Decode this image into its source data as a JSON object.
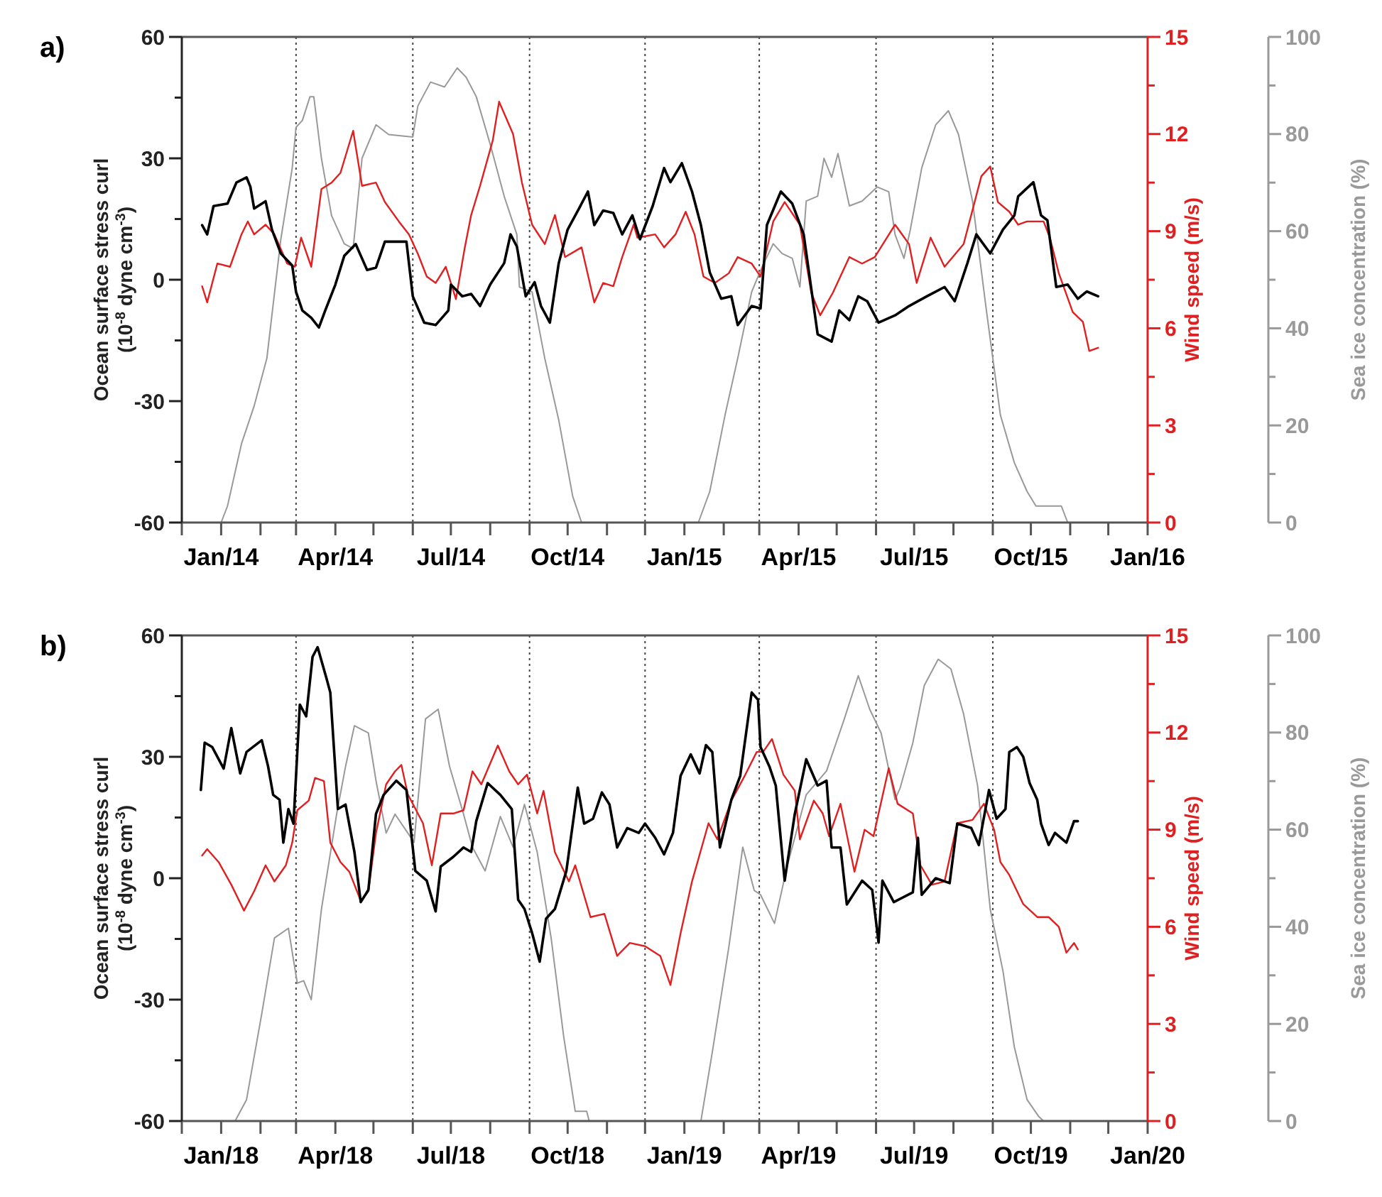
{
  "chart_data": [
    {
      "type": "line",
      "title": "a)",
      "ylabel": "Ocean surface stress curl\n(10$^{-8}$ dyne cm$^{-3}$)",
      "y2label": "Wind speed (m/s)",
      "y3label": "Sea ice concentration (%)",
      "xlim": [
        "2013-12-01",
        "2016-01-01"
      ],
      "xticks": [
        {
          "value": "2013-12-01",
          "label": null
        },
        {
          "value": "2014-01-01",
          "label": "Jan/14"
        },
        {
          "value": "2014-02-01",
          "label": null
        },
        {
          "value": "2014-03-01",
          "label": null
        },
        {
          "value": "2014-04-01",
          "label": "Apr/14"
        },
        {
          "value": "2014-05-01",
          "label": null
        },
        {
          "value": "2014-06-01",
          "label": null
        },
        {
          "value": "2014-07-01",
          "label": "Jul/14"
        },
        {
          "value": "2014-08-01",
          "label": null
        },
        {
          "value": "2014-09-01",
          "label": null
        },
        {
          "value": "2014-10-01",
          "label": "Oct/14"
        },
        {
          "value": "2014-11-01",
          "label": null
        },
        {
          "value": "2014-12-01",
          "label": null
        },
        {
          "value": "2015-01-01",
          "label": "Jan/15"
        },
        {
          "value": "2015-02-01",
          "label": null
        },
        {
          "value": "2015-03-01",
          "label": null
        },
        {
          "value": "2015-04-01",
          "label": "Apr/15"
        },
        {
          "value": "2015-05-01",
          "label": null
        },
        {
          "value": "2015-06-01",
          "label": null
        },
        {
          "value": "2015-07-01",
          "label": "Jul/15"
        },
        {
          "value": "2015-08-01",
          "label": null
        },
        {
          "value": "2015-09-01",
          "label": null
        },
        {
          "value": "2015-10-01",
          "label": "Oct/15"
        },
        {
          "value": "2015-11-01",
          "label": null
        },
        {
          "value": "2015-12-01",
          "label": null
        },
        {
          "value": "2016-01-01",
          "label": "Jan/16"
        }
      ],
      "ylim": [
        -60,
        60
      ],
      "yticks": [
        -60,
        {
          "value": -45,
          "label": null
        },
        -30,
        {
          "value": -15,
          "label": null
        },
        0,
        {
          "value": 15,
          "label": null
        },
        30,
        {
          "value": 45,
          "label": null
        },
        60
      ],
      "y2lim": [
        0,
        15
      ],
      "y2ticks": [
        0,
        {
          "value": 1.5,
          "label": null
        },
        3,
        {
          "value": 4.5,
          "label": null
        },
        6,
        {
          "value": 7.5,
          "label": null
        },
        9,
        {
          "value": 10.5,
          "label": null
        },
        12,
        {
          "value": 13.5,
          "label": null
        },
        15
      ],
      "y3lim": [
        0,
        100
      ],
      "y3ticks": [
        0,
        {
          "value": 10,
          "label": null
        },
        20,
        {
          "value": 30,
          "label": null
        },
        40,
        {
          "value": 50,
          "label": null
        },
        60,
        {
          "value": 70,
          "label": null
        },
        80,
        {
          "value": 90,
          "label": null
        },
        100
      ],
      "ref_lines": [
        {
          "axis": "x",
          "value": "2014-03-01",
          "line_style": "dotted",
          "color": "#444444"
        },
        {
          "axis": "x",
          "value": "2014-06-01",
          "line_style": "dotted",
          "color": "#444444"
        },
        {
          "axis": "x",
          "value": "2014-09-01",
          "line_style": "dotted",
          "color": "#444444"
        },
        {
          "axis": "x",
          "value": "2014-12-01",
          "line_style": "dotted",
          "color": "#444444"
        },
        {
          "axis": "x",
          "value": "2015-03-01",
          "line_style": "dotted",
          "color": "#444444"
        },
        {
          "axis": "x",
          "value": "2015-06-01",
          "line_style": "dotted",
          "color": "#444444"
        },
        {
          "axis": "x",
          "value": "2015-09-01",
          "line_style": "dotted",
          "color": "#444444"
        }
      ],
      "series": [
        {
          "color": "#999999",
          "axis": "y3",
          "x": [
            "2013-12-17",
            "2014-01-01",
            "2014-01-06",
            "2014-01-17",
            "2014-01-27",
            "2014-02-06",
            "2014-02-17",
            "2014-02-26",
            "2014-03-01",
            "2014-03-06",
            "2014-03-12",
            "2014-03-15",
            "2014-03-21",
            "2014-03-29",
            "2014-04-08",
            "2014-04-15",
            "2014-04-22",
            "2014-05-03",
            "2014-05-13",
            "2014-06-01",
            "2014-06-05",
            "2014-06-15",
            "2014-06-26",
            "2014-07-06",
            "2014-07-13",
            "2014-07-21",
            "2014-08-01",
            "2014-08-12",
            "2014-08-22",
            "2014-08-24",
            "2014-09-03",
            "2014-09-13",
            "2014-09-24",
            "2014-10-05",
            "2014-10-12",
            "2015-01-12",
            "2015-01-21",
            "2015-02-02",
            "2015-02-12",
            "2015-02-23",
            "2015-03-03",
            "2015-03-12",
            "2015-03-19",
            "2015-03-27",
            "2015-04-02",
            "2015-04-07",
            "2015-04-16",
            "2015-04-21",
            "2015-04-27",
            "2015-05-02",
            "2015-05-11",
            "2015-05-21",
            "2015-06-02",
            "2015-06-11",
            "2015-06-16",
            "2015-06-23",
            "2015-06-28",
            "2015-07-07",
            "2015-07-18",
            "2015-07-28",
            "2015-08-05",
            "2015-08-16",
            "2015-08-27",
            "2015-09-07",
            "2015-09-18",
            "2015-09-28",
            "2015-10-05",
            "2015-10-25",
            "2015-10-30",
            "2015-11-23"
          ],
          "values": [
            0,
            0,
            3.4,
            16.2,
            24,
            33.8,
            58.3,
            73,
            81.4,
            82.8,
            87.7,
            87.7,
            75,
            63.2,
            57.4,
            56.4,
            75,
            81.9,
            79.9,
            79.4,
            85.8,
            90.7,
            89.7,
            93.6,
            91.7,
            87.7,
            77.9,
            67.2,
            59.3,
            48.5,
            47.5,
            33.8,
            21.1,
            5.4,
            0,
            0,
            6.4,
            22.1,
            33.8,
            47.5,
            52.5,
            57.4,
            55.4,
            54.4,
            48.5,
            66.2,
            67.2,
            75,
            71.1,
            76,
            65.2,
            66.2,
            69.1,
            68.1,
            59.3,
            54.4,
            60.3,
            73,
            81.9,
            84.8,
            79.9,
            66.2,
            43.6,
            22.1,
            12.3,
            6.4,
            3.4,
            3.4,
            0,
            0
          ]
        },
        {
          "color": "#e02020",
          "axis": "y2",
          "x": [
            "2013-12-17",
            "2013-12-21",
            "2013-12-29",
            "2014-01-08",
            "2014-01-17",
            "2014-01-22",
            "2014-01-27",
            "2014-02-05",
            "2014-02-12",
            "2014-02-22",
            "2014-02-28",
            "2014-03-05",
            "2014-03-13",
            "2014-03-21",
            "2014-03-29",
            "2014-04-05",
            "2014-04-15",
            "2014-04-22",
            "2014-05-03",
            "2014-05-10",
            "2014-05-21",
            "2014-05-29",
            "2014-06-05",
            "2014-06-12",
            "2014-06-19",
            "2014-06-27",
            "2014-07-05",
            "2014-07-12",
            "2014-07-17",
            "2014-07-24",
            "2014-08-03",
            "2014-08-08",
            "2014-08-19",
            "2014-08-26",
            "2014-09-03",
            "2014-09-13",
            "2014-09-21",
            "2014-09-29",
            "2014-10-12",
            "2014-10-22",
            "2014-10-29",
            "2014-11-06",
            "2014-11-13",
            "2014-11-22",
            "2014-11-25",
            "2014-12-09",
            "2014-12-16",
            "2014-12-25",
            "2015-01-02",
            "2015-01-09",
            "2015-01-16",
            "2015-01-25",
            "2015-02-05",
            "2015-02-12",
            "2015-02-23",
            "2015-03-02",
            "2015-03-12",
            "2015-03-21",
            "2015-04-02",
            "2015-04-11",
            "2015-04-18",
            "2015-04-28",
            "2015-05-11",
            "2015-05-21",
            "2015-05-31",
            "2015-06-16",
            "2015-06-27",
            "2015-07-03",
            "2015-07-14",
            "2015-07-25",
            "2015-08-09",
            "2015-08-23",
            "2015-08-30",
            "2015-09-05",
            "2015-09-14",
            "2015-09-21",
            "2015-09-28",
            "2015-10-11",
            "2015-10-16",
            "2015-10-23",
            "2015-11-03",
            "2015-11-11",
            "2015-11-16",
            "2015-11-23"
          ],
          "values": [
            7.3,
            6.8,
            8.0,
            7.9,
            8.9,
            9.3,
            8.9,
            9.2,
            8.9,
            8.0,
            7.9,
            8.8,
            7.9,
            10.3,
            10.5,
            10.8,
            12.1,
            10.4,
            10.5,
            9.9,
            9.3,
            8.9,
            8.3,
            7.6,
            7.4,
            7.9,
            6.9,
            8.5,
            9.5,
            10.4,
            11.8,
            13.0,
            12.0,
            10.5,
            9.2,
            8.6,
            9.5,
            8.2,
            8.5,
            6.8,
            7.4,
            7.3,
            8.2,
            9.2,
            8.8,
            8.9,
            8.5,
            8.9,
            9.6,
            8.9,
            7.6,
            7.4,
            7.7,
            8.2,
            8.0,
            7.6,
            9.3,
            9.9,
            9.2,
            7.1,
            6.4,
            7.1,
            8.2,
            8.0,
            8.2,
            9.2,
            8.6,
            7.4,
            8.8,
            7.9,
            8.6,
            10.7,
            11.0,
            9.9,
            9.6,
            9.2,
            9.3,
            9.3,
            8.8,
            7.7,
            6.5,
            6.2,
            5.3,
            5.4
          ]
        },
        {
          "color": "#000000",
          "axis": "y",
          "x": [
            "2013-12-17",
            "2013-12-21",
            "2013-12-26",
            "2014-01-06",
            "2014-01-13",
            "2014-01-21",
            "2014-01-24",
            "2014-01-27",
            "2014-02-05",
            "2014-02-10",
            "2014-02-17",
            "2014-02-26",
            "2014-03-01",
            "2014-03-06",
            "2014-03-13",
            "2014-03-19",
            "2014-03-24",
            "2014-04-01",
            "2014-04-08",
            "2014-04-17",
            "2014-04-26",
            "2014-05-03",
            "2014-05-10",
            "2014-05-17",
            "2014-05-27",
            "2014-06-01",
            "2014-06-10",
            "2014-06-19",
            "2014-06-29",
            "2014-07-01",
            "2014-07-10",
            "2014-07-17",
            "2014-07-24",
            "2014-08-01",
            "2014-08-12",
            "2014-08-17",
            "2014-08-22",
            "2014-08-29",
            "2014-09-05",
            "2014-09-10",
            "2014-09-17",
            "2014-09-24",
            "2014-10-01",
            "2014-10-10",
            "2014-10-17",
            "2014-10-22",
            "2014-10-29",
            "2014-11-06",
            "2014-11-13",
            "2014-11-21",
            "2014-11-27",
            "2014-12-07",
            "2014-12-16",
            "2014-12-21",
            "2014-12-30",
            "2015-01-07",
            "2015-01-14",
            "2015-01-21",
            "2015-01-30",
            "2015-02-07",
            "2015-02-12",
            "2015-02-23",
            "2015-03-02",
            "2015-03-07",
            "2015-03-18",
            "2015-03-27",
            "2015-04-05",
            "2015-04-16",
            "2015-04-27",
            "2015-05-03",
            "2015-05-11",
            "2015-05-18",
            "2015-05-25",
            "2015-06-03",
            "2015-06-16",
            "2015-06-27",
            "2015-07-11",
            "2015-07-25",
            "2015-08-02",
            "2015-08-12",
            "2015-08-19",
            "2015-08-30",
            "2015-09-09",
            "2015-09-18",
            "2015-09-21",
            "2015-10-03",
            "2015-10-09",
            "2015-10-14",
            "2015-10-21",
            "2015-10-30",
            "2015-11-07",
            "2015-11-14",
            "2015-11-23"
          ],
          "values": [
            13.5,
            11.2,
            18.2,
            18.8,
            24,
            25.3,
            23,
            17.6,
            19.4,
            12.4,
            6.5,
            3.5,
            -3,
            -7.6,
            -9.4,
            -11.8,
            -7.6,
            -1.2,
            5.9,
            8.8,
            2.4,
            3,
            9.4,
            9.4,
            9.4,
            -4.1,
            -10.6,
            -11.2,
            -7.6,
            -1.2,
            -4.1,
            -3.5,
            -6.5,
            -1.2,
            4.1,
            11.2,
            8.2,
            -4.1,
            -0.6,
            -6.5,
            -10.6,
            4.1,
            12.4,
            17.6,
            21.8,
            13.5,
            17.1,
            16.5,
            11.2,
            15.9,
            10,
            18.2,
            27.6,
            24.1,
            28.8,
            21.8,
            13.5,
            1.8,
            -4.7,
            -4.1,
            -11.2,
            -6.5,
            -7.1,
            13.5,
            21.8,
            18.8,
            11.2,
            -13.5,
            -15.3,
            -7.6,
            -10,
            -4.1,
            -5.3,
            -10.6,
            -8.8,
            -6.5,
            -4.1,
            -1.8,
            -5.3,
            4.1,
            11.2,
            6.5,
            12.4,
            15.9,
            20.6,
            24.1,
            15.9,
            14.7,
            -1.8,
            -1.2,
            -4.7,
            -2.9,
            -4.1
          ]
        }
      ]
    },
    {
      "type": "line",
      "title": "b)",
      "ylabel": "Ocean surface stress curl\n(10$^{-8}$ dyne cm$^{-3}$)",
      "y2label": "Wind speed (m/s)",
      "y3label": "Sea ice concentration (%)",
      "xlim": [
        "2017-12-01",
        "2020-01-01"
      ],
      "xticks": [
        {
          "value": "2017-12-01",
          "label": null
        },
        {
          "value": "2018-01-01",
          "label": "Jan/18"
        },
        {
          "value": "2018-02-01",
          "label": null
        },
        {
          "value": "2018-03-01",
          "label": null
        },
        {
          "value": "2018-04-01",
          "label": "Apr/18"
        },
        {
          "value": "2018-05-01",
          "label": null
        },
        {
          "value": "2018-06-01",
          "label": null
        },
        {
          "value": "2018-07-01",
          "label": "Jul/18"
        },
        {
          "value": "2018-08-01",
          "label": null
        },
        {
          "value": "2018-09-01",
          "label": null
        },
        {
          "value": "2018-10-01",
          "label": "Oct/18"
        },
        {
          "value": "2018-11-01",
          "label": null
        },
        {
          "value": "2018-12-01",
          "label": null
        },
        {
          "value": "2019-01-01",
          "label": "Jan/19"
        },
        {
          "value": "2019-02-01",
          "label": null
        },
        {
          "value": "2019-03-01",
          "label": null
        },
        {
          "value": "2019-04-01",
          "label": "Apr/19"
        },
        {
          "value": "2019-05-01",
          "label": null
        },
        {
          "value": "2019-06-01",
          "label": null
        },
        {
          "value": "2019-07-01",
          "label": "Jul/19"
        },
        {
          "value": "2019-08-01",
          "label": null
        },
        {
          "value": "2019-09-01",
          "label": null
        },
        {
          "value": "2019-10-01",
          "label": "Oct/19"
        },
        {
          "value": "2019-11-01",
          "label": null
        },
        {
          "value": "2019-12-01",
          "label": null
        },
        {
          "value": "2020-01-01",
          "label": "Jan/20"
        }
      ],
      "ylim": [
        -60,
        60
      ],
      "yticks": [
        -60,
        {
          "value": -45,
          "label": null
        },
        -30,
        {
          "value": -15,
          "label": null
        },
        0,
        {
          "value": 15,
          "label": null
        },
        30,
        {
          "value": 45,
          "label": null
        },
        60
      ],
      "y2lim": [
        0,
        15
      ],
      "y2ticks": [
        0,
        {
          "value": 1.5,
          "label": null
        },
        3,
        {
          "value": 4.5,
          "label": null
        },
        6,
        {
          "value": 7.5,
          "label": null
        },
        9,
        {
          "value": 10.5,
          "label": null
        },
        12,
        {
          "value": 13.5,
          "label": null
        },
        15
      ],
      "y3lim": [
        0,
        100
      ],
      "y3ticks": [
        0,
        {
          "value": 10,
          "label": null
        },
        20,
        {
          "value": 30,
          "label": null
        },
        40,
        {
          "value": 50,
          "label": null
        },
        60,
        {
          "value": 70,
          "label": null
        },
        80,
        {
          "value": 90,
          "label": null
        },
        100
      ],
      "ref_lines": [
        {
          "axis": "x",
          "value": "2018-03-01",
          "line_style": "dotted",
          "color": "#444444"
        },
        {
          "axis": "x",
          "value": "2018-06-01",
          "line_style": "dotted",
          "color": "#444444"
        },
        {
          "axis": "x",
          "value": "2018-09-01",
          "line_style": "dotted",
          "color": "#444444"
        },
        {
          "axis": "x",
          "value": "2018-12-01",
          "line_style": "dotted",
          "color": "#444444"
        },
        {
          "axis": "x",
          "value": "2019-03-01",
          "line_style": "dotted",
          "color": "#444444"
        },
        {
          "axis": "x",
          "value": "2019-06-01",
          "line_style": "dotted",
          "color": "#444444"
        },
        {
          "axis": "x",
          "value": "2019-09-01",
          "line_style": "dotted",
          "color": "#444444"
        }
      ],
      "series": [
        {
          "color": "#999999",
          "axis": "y3",
          "x": [
            "2017-12-16",
            "2018-01-12",
            "2018-01-21",
            "2018-02-02",
            "2018-02-12",
            "2018-02-23",
            "2018-02-26",
            "2018-03-02",
            "2018-03-07",
            "2018-03-13",
            "2018-03-21",
            "2018-04-02",
            "2018-04-09",
            "2018-04-16",
            "2018-04-27",
            "2018-05-03",
            "2018-05-11",
            "2018-05-18",
            "2018-06-02",
            "2018-06-11",
            "2018-06-21",
            "2018-06-30",
            "2018-07-11",
            "2018-07-18",
            "2018-07-28",
            "2018-08-09",
            "2018-08-19",
            "2018-08-28",
            "2018-09-07",
            "2018-09-18",
            "2018-09-28",
            "2018-10-07",
            "2018-10-16",
            "2018-10-18",
            "2019-01-14",
            "2019-01-23",
            "2019-02-05",
            "2019-02-16",
            "2019-02-25",
            "2019-03-02",
            "2019-03-13",
            "2019-03-23",
            "2019-04-07",
            "2019-04-23",
            "2019-05-07",
            "2019-05-18",
            "2019-05-27",
            "2019-06-05",
            "2019-06-16",
            "2019-06-20",
            "2019-06-30",
            "2019-07-09",
            "2019-07-20",
            "2019-07-30",
            "2019-08-09",
            "2019-08-20",
            "2019-08-30",
            "2019-09-09",
            "2019-09-18",
            "2019-09-28",
            "2019-10-07",
            "2019-10-11"
          ],
          "values": [
            0,
            0,
            4.4,
            22.1,
            37.7,
            39.7,
            34.8,
            28.4,
            28.9,
            25,
            43.6,
            63.2,
            73,
            81.4,
            79.9,
            70.1,
            59.3,
            63.2,
            57.4,
            82.8,
            84.8,
            73,
            63.2,
            56.4,
            51.5,
            62.7,
            56.4,
            65.2,
            55.4,
            37.7,
            17.2,
            2,
            2,
            0,
            0,
            14.2,
            35.8,
            56.4,
            47.5,
            46.6,
            40.7,
            52.5,
            67.2,
            72.1,
            82.8,
            91.7,
            84.8,
            79.9,
            66.2,
            68.6,
            77.9,
            89.7,
            95.1,
            93.1,
            83.8,
            69.1,
            43.6,
            30.9,
            15.2,
            4.4,
            1,
            0
          ]
        },
        {
          "color": "#e02020",
          "axis": "y2",
          "x": [
            "2017-12-17",
            "2017-12-21",
            "2017-12-30",
            "2018-01-09",
            "2018-01-19",
            "2018-01-27",
            "2018-02-05",
            "2018-02-12",
            "2018-02-21",
            "2018-02-26",
            "2018-03-02",
            "2018-03-11",
            "2018-03-16",
            "2018-03-23",
            "2018-03-28",
            "2018-04-05",
            "2018-04-12",
            "2018-04-21",
            "2018-04-27",
            "2018-05-03",
            "2018-05-11",
            "2018-05-18",
            "2018-05-23",
            "2018-05-28",
            "2018-06-09",
            "2018-06-16",
            "2018-06-23",
            "2018-07-03",
            "2018-07-11",
            "2018-07-18",
            "2018-07-25",
            "2018-08-07",
            "2018-08-16",
            "2018-08-23",
            "2018-08-30",
            "2018-09-07",
            "2018-09-12",
            "2018-09-21",
            "2018-10-02",
            "2018-10-07",
            "2018-10-19",
            "2018-10-30",
            "2018-11-09",
            "2018-11-19",
            "2018-12-01",
            "2018-12-13",
            "2018-12-21",
            "2018-12-29",
            "2019-01-07",
            "2019-01-20",
            "2019-01-27",
            "2019-02-07",
            "2019-02-18",
            "2019-02-27",
            "2019-03-04",
            "2019-03-11",
            "2019-03-20",
            "2019-03-29",
            "2019-04-02",
            "2019-04-13",
            "2019-04-20",
            "2019-04-25",
            "2019-05-04",
            "2019-05-15",
            "2019-05-23",
            "2019-05-30",
            "2019-06-11",
            "2019-06-18",
            "2019-06-30",
            "2019-07-06",
            "2019-07-15",
            "2019-07-25",
            "2019-08-04",
            "2019-08-16",
            "2019-08-25",
            "2019-09-02",
            "2019-09-07",
            "2019-09-14",
            "2019-09-25",
            "2019-10-06",
            "2019-10-15",
            "2019-10-23",
            "2019-10-29",
            "2019-11-04",
            "2019-11-07"
          ],
          "values": [
            8.2,
            8.4,
            8.0,
            7.3,
            6.5,
            7.1,
            7.9,
            7.4,
            7.9,
            8.6,
            9.6,
            9.9,
            10.6,
            10.5,
            8.6,
            8.0,
            7.7,
            6.8,
            7.1,
            8.9,
            10.4,
            10.8,
            11.0,
            10.1,
            9.2,
            7.9,
            9.5,
            9.5,
            9.6,
            10.8,
            10.4,
            11.6,
            10.8,
            10.4,
            10.7,
            9.5,
            10.2,
            8.3,
            7.4,
            7.9,
            6.3,
            6.4,
            5.1,
            5.5,
            5.4,
            5.1,
            4.2,
            5.8,
            7.4,
            9.2,
            8.7,
            9.9,
            10.7,
            11.4,
            11.4,
            11.8,
            10.7,
            10.2,
            8.7,
            9.9,
            9.5,
            8.8,
            9.8,
            7.7,
            9.0,
            8.8,
            10.9,
            9.8,
            9.5,
            7.9,
            7.3,
            7.4,
            9.2,
            9.3,
            9.8,
            9.0,
            8.0,
            7.6,
            6.7,
            6.3,
            6.3,
            6.0,
            5.2,
            5.5,
            5.3
          ]
        },
        {
          "color": "#000000",
          "axis": "y",
          "x": [
            "2017-12-16",
            "2017-12-19",
            "2017-12-25",
            "2018-01-03",
            "2018-01-09",
            "2018-01-16",
            "2018-01-21",
            "2018-02-02",
            "2018-02-07",
            "2018-02-11",
            "2018-02-16",
            "2018-02-19",
            "2018-02-23",
            "2018-02-27",
            "2018-03-04",
            "2018-03-09",
            "2018-03-14",
            "2018-03-18",
            "2018-03-25",
            "2018-03-28",
            "2018-04-03",
            "2018-04-09",
            "2018-04-16",
            "2018-04-21",
            "2018-04-27",
            "2018-05-03",
            "2018-05-09",
            "2018-05-19",
            "2018-05-27",
            "2018-06-03",
            "2018-06-12",
            "2018-06-19",
            "2018-06-23",
            "2018-07-03",
            "2018-07-11",
            "2018-07-17",
            "2018-07-21",
            "2018-07-30",
            "2018-08-09",
            "2018-08-18",
            "2018-08-23",
            "2018-08-28",
            "2018-09-03",
            "2018-09-09",
            "2018-09-14",
            "2018-09-21",
            "2018-09-30",
            "2018-10-09",
            "2018-10-14",
            "2018-10-21",
            "2018-10-28",
            "2018-11-03",
            "2018-11-09",
            "2018-11-17",
            "2018-11-26",
            "2018-12-01",
            "2018-12-09",
            "2018-12-16",
            "2018-12-23",
            "2018-12-29",
            "2019-01-06",
            "2019-01-13",
            "2019-01-18",
            "2019-01-23",
            "2019-01-29",
            "2019-02-07",
            "2019-02-14",
            "2019-02-23",
            "2019-02-28",
            "2019-03-02",
            "2019-03-09",
            "2019-03-14",
            "2019-03-21",
            "2019-03-29",
            "2019-04-07",
            "2019-04-16",
            "2019-04-23",
            "2019-04-27",
            "2019-05-04",
            "2019-05-09",
            "2019-05-21",
            "2019-05-29",
            "2019-06-03",
            "2019-06-06",
            "2019-06-15",
            "2019-06-30",
            "2019-07-04",
            "2019-07-07",
            "2019-07-18",
            "2019-07-29",
            "2019-08-04",
            "2019-08-15",
            "2019-08-21",
            "2019-08-29",
            "2019-09-04",
            "2019-09-11",
            "2019-09-14",
            "2019-09-20",
            "2019-09-25",
            "2019-09-30",
            "2019-10-06",
            "2019-10-09",
            "2019-10-15",
            "2019-10-20",
            "2019-10-29",
            "2019-11-04",
            "2019-11-07"
          ],
          "values": [
            21.8,
            33.5,
            32.4,
            27.1,
            37.1,
            25.9,
            31.2,
            34.1,
            27.6,
            20.6,
            19.4,
            8.8,
            17.1,
            13.5,
            42.9,
            40,
            54.7,
            57.1,
            49.4,
            45.9,
            17.1,
            18.2,
            6.5,
            -5.9,
            -2.9,
            15.9,
            20.6,
            24.1,
            21.8,
            1.8,
            -0.6,
            -8.2,
            2.9,
            5.3,
            7.6,
            6.5,
            14.1,
            23.5,
            20.6,
            17.1,
            -5.3,
            -7.6,
            -13.5,
            -20.6,
            -10,
            -7.6,
            1.8,
            22.4,
            13.5,
            14.7,
            21.2,
            18.2,
            7.6,
            12.4,
            11.2,
            13.5,
            10,
            5.9,
            11.2,
            25.3,
            30.6,
            25.9,
            32.9,
            31.2,
            7.6,
            19.4,
            25.3,
            45.9,
            44.1,
            32.4,
            27.6,
            22.9,
            -0.6,
            15.9,
            29.4,
            22.9,
            24.1,
            7.6,
            7.6,
            -6.5,
            -0.6,
            -2.9,
            -15.9,
            -0.6,
            -5.9,
            -3.5,
            10,
            -4.1,
            0,
            -1.2,
            13.5,
            12.4,
            8.2,
            21.8,
            14.7,
            17.1,
            31.2,
            32.4,
            30,
            23.5,
            19.4,
            13.5,
            8.2,
            11.2,
            8.8,
            14.1,
            14.1
          ]
        }
      ]
    }
  ]
}
